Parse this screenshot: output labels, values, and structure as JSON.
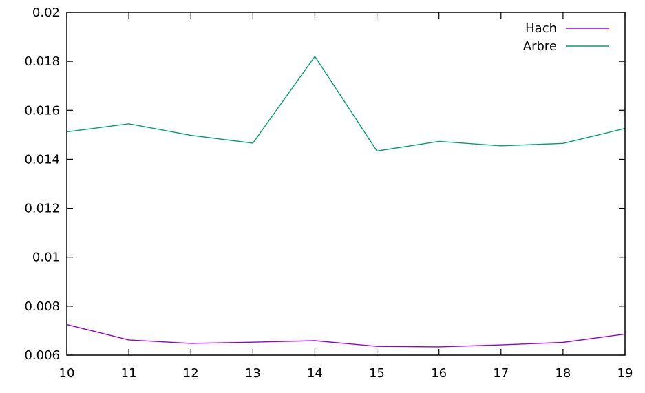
{
  "chart_data": {
    "type": "line",
    "title": "",
    "xlabel": "",
    "ylabel": "",
    "x": [
      10,
      11,
      12,
      13,
      14,
      15,
      16,
      17,
      18,
      19
    ],
    "xlim": [
      10,
      19
    ],
    "ylim": [
      0.006,
      0.02
    ],
    "x_ticks": [
      "10",
      "11",
      "12",
      "13",
      "14",
      "15",
      "16",
      "17",
      "18",
      "19"
    ],
    "y_ticks": [
      {
        "value": 0.006,
        "label": "0.006"
      },
      {
        "value": 0.008,
        "label": "0.008"
      },
      {
        "value": 0.01,
        "label": "0.01"
      },
      {
        "value": 0.012,
        "label": "0.012"
      },
      {
        "value": 0.014,
        "label": "0.014"
      },
      {
        "value": 0.016,
        "label": "0.016"
      },
      {
        "value": 0.018,
        "label": "0.018"
      },
      {
        "value": 0.02,
        "label": "0.02"
      }
    ],
    "grid": false,
    "legend_position": "top-right",
    "series": [
      {
        "name": "Hach",
        "color": "#9400d3",
        "values": [
          0.00725,
          0.00662,
          0.00648,
          0.00653,
          0.00659,
          0.00636,
          0.00634,
          0.00642,
          0.00652,
          0.00686
        ]
      },
      {
        "name": "Arbre",
        "color": "#009e73",
        "values": [
          0.01512,
          0.01545,
          0.01498,
          0.01466,
          0.0182,
          0.01434,
          0.01473,
          0.01455,
          0.01465,
          0.01526
        ]
      }
    ]
  }
}
